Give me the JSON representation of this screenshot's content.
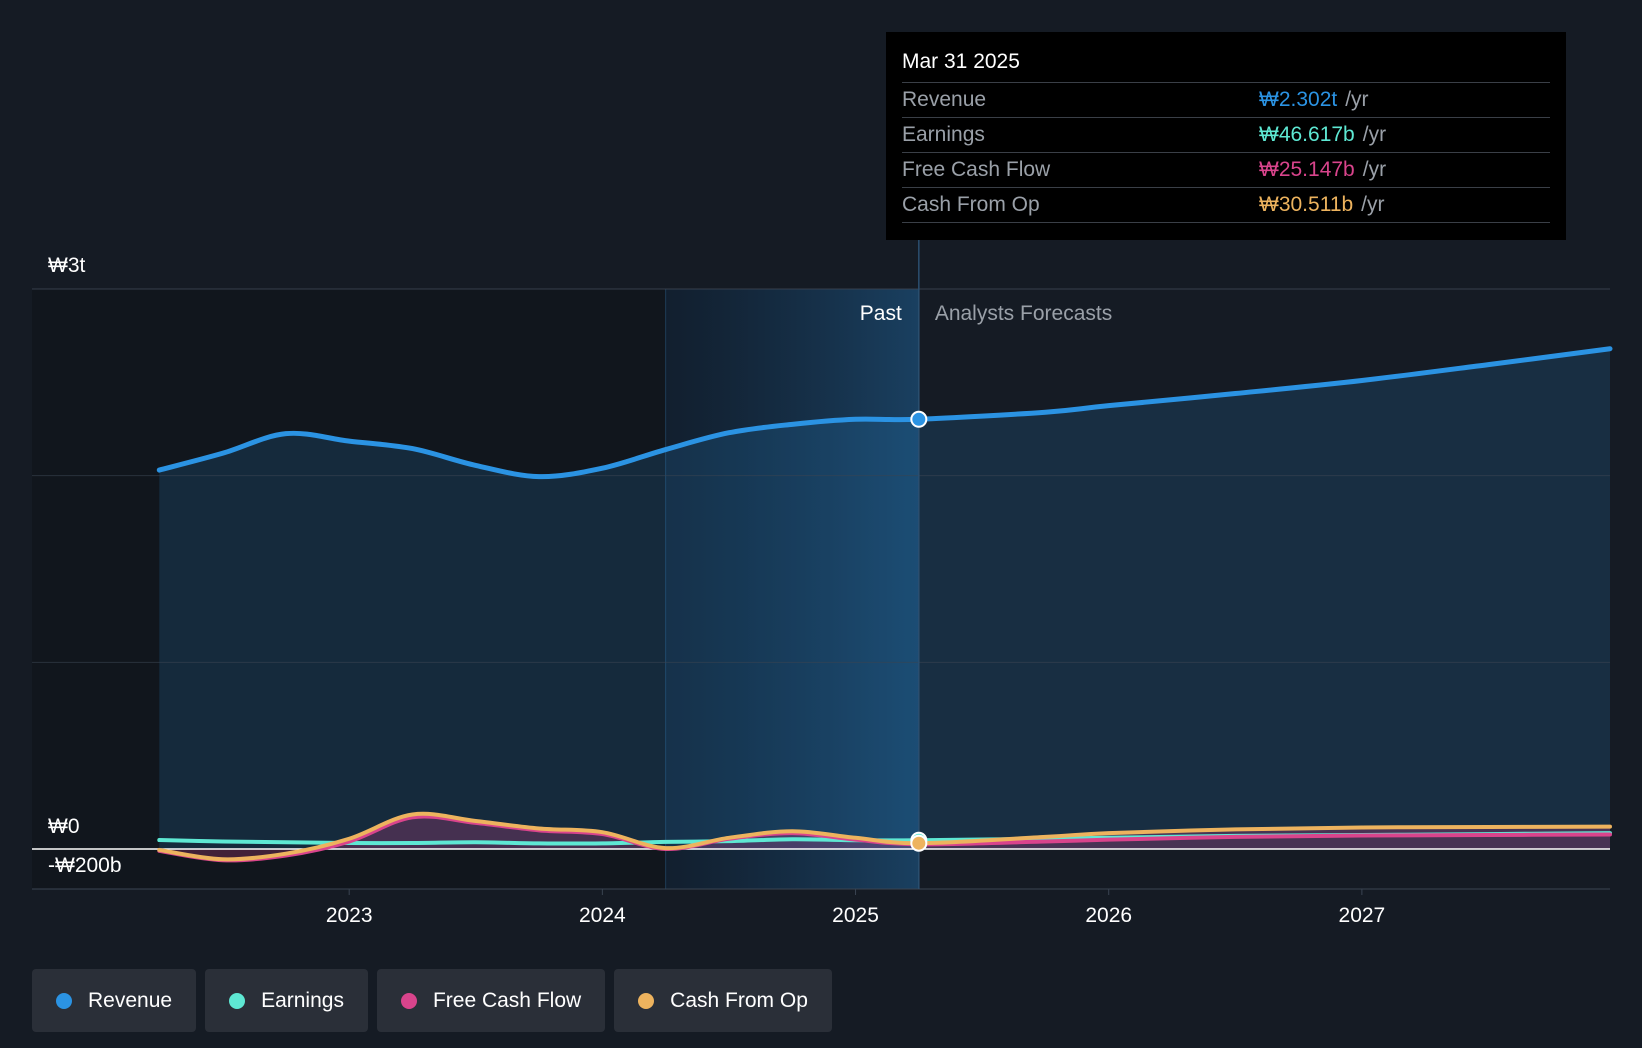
{
  "colors": {
    "revenue": "#2b93e3",
    "earnings": "#5ee8d3",
    "free_cash_flow": "#d9448c",
    "cash_from_op": "#edb35e",
    "background": "#151b24"
  },
  "tooltip": {
    "date": "Mar 31 2025",
    "rows": [
      {
        "label": "Revenue",
        "value": "₩2.302t",
        "unit": "/yr",
        "color": "#2b93e3"
      },
      {
        "label": "Earnings",
        "value": "₩46.617b",
        "unit": "/yr",
        "color": "#5ee8d3"
      },
      {
        "label": "Free Cash Flow",
        "value": "₩25.147b",
        "unit": "/yr",
        "color": "#d9448c"
      },
      {
        "label": "Cash From Op",
        "value": "₩30.511b",
        "unit": "/yr",
        "color": "#edb35e"
      }
    ]
  },
  "legend": [
    {
      "label": "Revenue",
      "color": "#2b93e3"
    },
    {
      "label": "Earnings",
      "color": "#5ee8d3"
    },
    {
      "label": "Free Cash Flow",
      "color": "#d9448c"
    },
    {
      "label": "Cash From Op",
      "color": "#edb35e"
    }
  ],
  "chart_data": {
    "type": "line",
    "ylim": [
      -200,
      3000
    ],
    "y_unit": "₩ billions",
    "xlim": [
      2022.0,
      2027.98
    ],
    "y_tick_labels": [
      {
        "value": 3000,
        "label": "₩3t"
      },
      {
        "value": 0,
        "label": "₩0"
      },
      {
        "value": -200,
        "label": "-₩200b"
      }
    ],
    "x_ticks": [
      {
        "value": 2023,
        "label": "2023"
      },
      {
        "value": 2024,
        "label": "2024"
      },
      {
        "value": 2025,
        "label": "2025"
      },
      {
        "value": 2026,
        "label": "2026"
      },
      {
        "value": 2027,
        "label": "2027"
      }
    ],
    "past_label": "Past",
    "forecast_label": "Analysts Forecasts",
    "past_end_x": 2025.25,
    "shaded_start_x": 2024.25,
    "series": [
      {
        "name": "Revenue",
        "key": "revenue",
        "past": [
          [
            2022.25,
            2030
          ],
          [
            2022.5,
            2120
          ],
          [
            2022.75,
            2225
          ],
          [
            2023.0,
            2185
          ],
          [
            2023.25,
            2145
          ],
          [
            2023.5,
            2055
          ],
          [
            2023.75,
            1995
          ],
          [
            2024.0,
            2040
          ],
          [
            2024.25,
            2140
          ],
          [
            2024.5,
            2230
          ],
          [
            2024.75,
            2275
          ],
          [
            2025.0,
            2302
          ],
          [
            2025.25,
            2302
          ]
        ],
        "forecast": [
          [
            2025.25,
            2302
          ],
          [
            2025.75,
            2340
          ],
          [
            2026.0,
            2375
          ],
          [
            2026.5,
            2440
          ],
          [
            2027.0,
            2510
          ],
          [
            2027.5,
            2595
          ],
          [
            2027.98,
            2680
          ]
        ]
      },
      {
        "name": "Earnings",
        "key": "earnings",
        "past": [
          [
            2022.25,
            48
          ],
          [
            2022.5,
            40
          ],
          [
            2022.75,
            36
          ],
          [
            2023.0,
            32
          ],
          [
            2023.25,
            32
          ],
          [
            2023.5,
            36
          ],
          [
            2023.75,
            30
          ],
          [
            2024.0,
            30
          ],
          [
            2024.25,
            38
          ],
          [
            2024.5,
            42
          ],
          [
            2024.75,
            52
          ],
          [
            2025.0,
            47
          ],
          [
            2025.25,
            47
          ]
        ],
        "forecast": [
          [
            2025.25,
            47
          ],
          [
            2025.75,
            55
          ],
          [
            2026.0,
            60
          ],
          [
            2026.5,
            70
          ],
          [
            2027.0,
            75
          ],
          [
            2027.5,
            80
          ],
          [
            2027.98,
            85
          ]
        ]
      },
      {
        "name": "Free Cash Flow",
        "key": "free_cash_flow",
        "past": [
          [
            2022.25,
            -10
          ],
          [
            2022.5,
            -60
          ],
          [
            2022.75,
            -35
          ],
          [
            2023.0,
            40
          ],
          [
            2023.25,
            170
          ],
          [
            2023.5,
            140
          ],
          [
            2023.75,
            100
          ],
          [
            2024.0,
            80
          ],
          [
            2024.25,
            0
          ],
          [
            2024.5,
            55
          ],
          [
            2024.75,
            85
          ],
          [
            2025.0,
            50
          ],
          [
            2025.25,
            25
          ]
        ],
        "forecast": [
          [
            2025.25,
            25
          ],
          [
            2025.75,
            40
          ],
          [
            2026.0,
            50
          ],
          [
            2026.5,
            65
          ],
          [
            2027.0,
            72
          ],
          [
            2027.5,
            75
          ],
          [
            2027.98,
            78
          ]
        ]
      },
      {
        "name": "Cash From Op",
        "key": "cash_from_op",
        "past": [
          [
            2022.25,
            -5
          ],
          [
            2022.5,
            -55
          ],
          [
            2022.75,
            -25
          ],
          [
            2023.0,
            55
          ],
          [
            2023.25,
            185
          ],
          [
            2023.5,
            150
          ],
          [
            2023.75,
            110
          ],
          [
            2024.0,
            90
          ],
          [
            2024.25,
            5
          ],
          [
            2024.5,
            60
          ],
          [
            2024.75,
            95
          ],
          [
            2025.0,
            60
          ],
          [
            2025.25,
            31
          ]
        ],
        "forecast": [
          [
            2025.25,
            31
          ],
          [
            2025.75,
            65
          ],
          [
            2026.0,
            85
          ],
          [
            2026.5,
            105
          ],
          [
            2027.0,
            115
          ],
          [
            2027.5,
            118
          ],
          [
            2027.98,
            120
          ]
        ]
      }
    ]
  }
}
